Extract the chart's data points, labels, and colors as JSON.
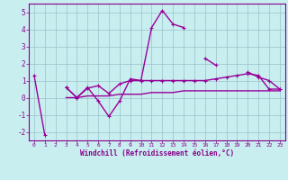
{
  "xlabel": "Windchill (Refroidissement éolien,°C)",
  "x": [
    0,
    1,
    2,
    3,
    4,
    5,
    6,
    7,
    8,
    9,
    10,
    11,
    12,
    13,
    14,
    15,
    16,
    17,
    18,
    19,
    20,
    21,
    22,
    23
  ],
  "line1": [
    1.3,
    -2.2,
    null,
    0.6,
    0.0,
    0.6,
    -0.2,
    -1.1,
    -0.2,
    1.1,
    1.0,
    4.1,
    5.1,
    4.3,
    4.1,
    null,
    2.3,
    1.9,
    null,
    null,
    1.5,
    1.2,
    1.0,
    0.5
  ],
  "line2": [
    null,
    null,
    null,
    0.6,
    0.0,
    0.55,
    0.7,
    0.25,
    0.8,
    1.0,
    1.0,
    1.0,
    1.0,
    1.0,
    1.0,
    1.0,
    1.0,
    1.1,
    1.2,
    1.3,
    1.4,
    1.3,
    0.5,
    0.5
  ],
  "line3": [
    null,
    null,
    null,
    0.0,
    0.0,
    0.1,
    0.1,
    0.1,
    0.2,
    0.2,
    0.2,
    0.3,
    0.3,
    0.3,
    0.4,
    0.4,
    0.4,
    0.4,
    0.4,
    0.4,
    0.4,
    0.4,
    0.4,
    0.4
  ],
  "ylim": [
    -2.5,
    5.5
  ],
  "xlim": [
    -0.5,
    23.5
  ],
  "yticks": [
    -2,
    -1,
    0,
    1,
    2,
    3,
    4,
    5
  ],
  "xticks": [
    0,
    1,
    2,
    3,
    4,
    5,
    6,
    7,
    8,
    9,
    10,
    11,
    12,
    13,
    14,
    15,
    16,
    17,
    18,
    19,
    20,
    21,
    22,
    23
  ],
  "line_color": "#990099",
  "bg_color": "#c8eef0",
  "grid_color": "#a0c8d0",
  "axis_color": "#880088",
  "spine_color": "#880088"
}
